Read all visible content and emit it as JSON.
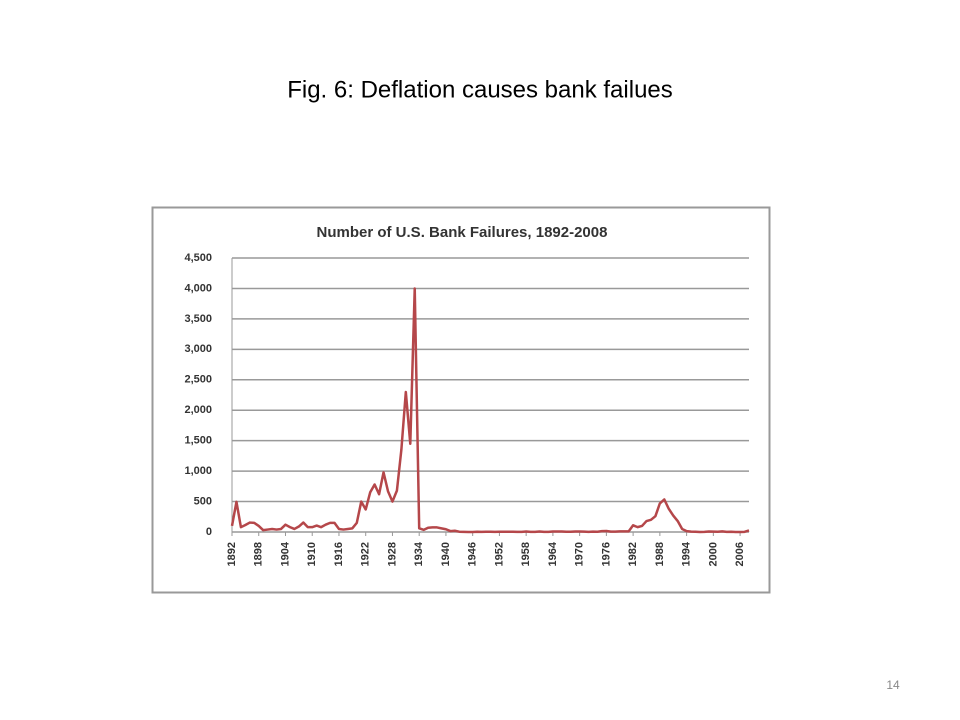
{
  "slide": {
    "title": "Fig. 6: Deflation causes bank failues",
    "page_number": "14"
  },
  "chart_data": {
    "type": "line",
    "title": "Number of U.S. Bank Failures, 1892-2008",
    "color": "#b5474a",
    "grid": true,
    "x": [
      1892,
      1893,
      1894,
      1895,
      1896,
      1897,
      1898,
      1899,
      1900,
      1901,
      1902,
      1903,
      1904,
      1905,
      1906,
      1907,
      1908,
      1909,
      1910,
      1911,
      1912,
      1913,
      1914,
      1915,
      1916,
      1917,
      1918,
      1919,
      1920,
      1921,
      1922,
      1923,
      1924,
      1925,
      1926,
      1927,
      1928,
      1929,
      1930,
      1931,
      1932,
      1933,
      1934,
      1935,
      1936,
      1937,
      1938,
      1939,
      1940,
      1941,
      1942,
      1943,
      1944,
      1945,
      1946,
      1947,
      1948,
      1949,
      1950,
      1951,
      1952,
      1953,
      1954,
      1955,
      1956,
      1957,
      1958,
      1959,
      1960,
      1961,
      1962,
      1963,
      1964,
      1965,
      1966,
      1967,
      1968,
      1969,
      1970,
      1971,
      1972,
      1973,
      1974,
      1975,
      1976,
      1977,
      1978,
      1979,
      1980,
      1981,
      1982,
      1983,
      1984,
      1985,
      1986,
      1987,
      1988,
      1989,
      1990,
      1991,
      1992,
      1993,
      1994,
      1995,
      1996,
      1997,
      1998,
      1999,
      2000,
      2001,
      2002,
      2003,
      2004,
      2005,
      2006,
      2007,
      2008
    ],
    "values": [
      100,
      496,
      79,
      115,
      155,
      150,
      100,
      30,
      40,
      50,
      40,
      50,
      120,
      80,
      50,
      90,
      155,
      80,
      80,
      105,
      80,
      120,
      150,
      150,
      50,
      40,
      50,
      60,
      150,
      500,
      370,
      650,
      780,
      620,
      980,
      670,
      500,
      680,
      1350,
      2300,
      1450,
      4000,
      60,
      35,
      70,
      75,
      75,
      60,
      45,
      15,
      20,
      5,
      2,
      0,
      0,
      5,
      3,
      5,
      4,
      3,
      4,
      4,
      4,
      5,
      3,
      3,
      9,
      3,
      2,
      9,
      3,
      2,
      8,
      9,
      8,
      4,
      4,
      9,
      8,
      6,
      3,
      6,
      4,
      14,
      17,
      6,
      7,
      10,
      10,
      10,
      110,
      80,
      100,
      180,
      200,
      260,
      470,
      534,
      380,
      270,
      180,
      50,
      15,
      6,
      5,
      1,
      3,
      8,
      7,
      4,
      11,
      3,
      4,
      0,
      0,
      3,
      25
    ],
    "xlim": [
      1892,
      2008
    ],
    "xticks": [
      1892,
      1898,
      1904,
      1910,
      1916,
      1922,
      1928,
      1934,
      1940,
      1946,
      1952,
      1958,
      1964,
      1970,
      1976,
      1982,
      1988,
      1994,
      2000,
      2006
    ],
    "ylim": [
      0,
      4500
    ],
    "yticks": [
      0,
      500,
      {
        "value": 1000,
        "label": "1,000"
      },
      {
        "value": 1500,
        "label": "1,500"
      },
      {
        "value": 2000,
        "label": "2,000"
      },
      {
        "value": 2500,
        "label": "2,500"
      },
      {
        "value": 3000,
        "label": "3,000"
      },
      {
        "value": 3500,
        "label": "3,500"
      },
      {
        "value": 4000,
        "label": "4,000"
      },
      {
        "value": 4500,
        "label": "4,500"
      }
    ]
  }
}
